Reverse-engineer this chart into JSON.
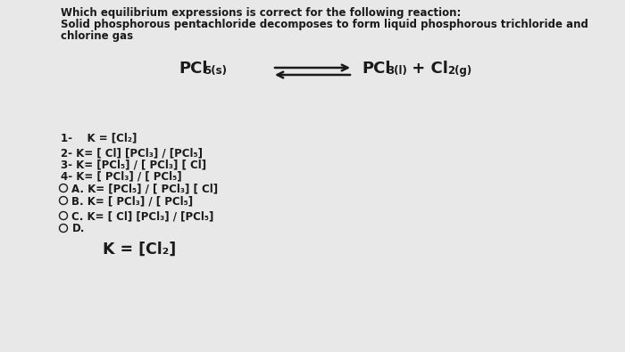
{
  "background_color": "#e8e8e8",
  "title_lines": [
    "Which equilibrium expressions is correct for the following reaction:",
    "Solid phosphorous pentachloride decomposes to form liquid phosphorous trichloride and",
    "chlorine gas"
  ],
  "options_numbered": [
    "1-    K = [Cl₂]",
    "2- K= [ Cl] [PCl₃] / [PCl₅]",
    "3- K= [PCl₅] / [ PCl₃] [ Cl]",
    "4- K= [ PCl₃] / [ PCl₅]"
  ],
  "options_lettered": [
    "A. K= [PCl₅] / [ PCl₃] [ Cl]",
    "B. K= [ PCl₃] / [ PCl₅]",
    "C. K= [ Cl] [PCl₃] / [PCl₅]",
    "D."
  ],
  "answer_bold": "K = [Cl₂]",
  "text_color": "#1a1a1a",
  "font_size_title": 8.5,
  "font_size_body": 8.5,
  "font_size_answer": 12.5,
  "font_size_reaction": 13
}
